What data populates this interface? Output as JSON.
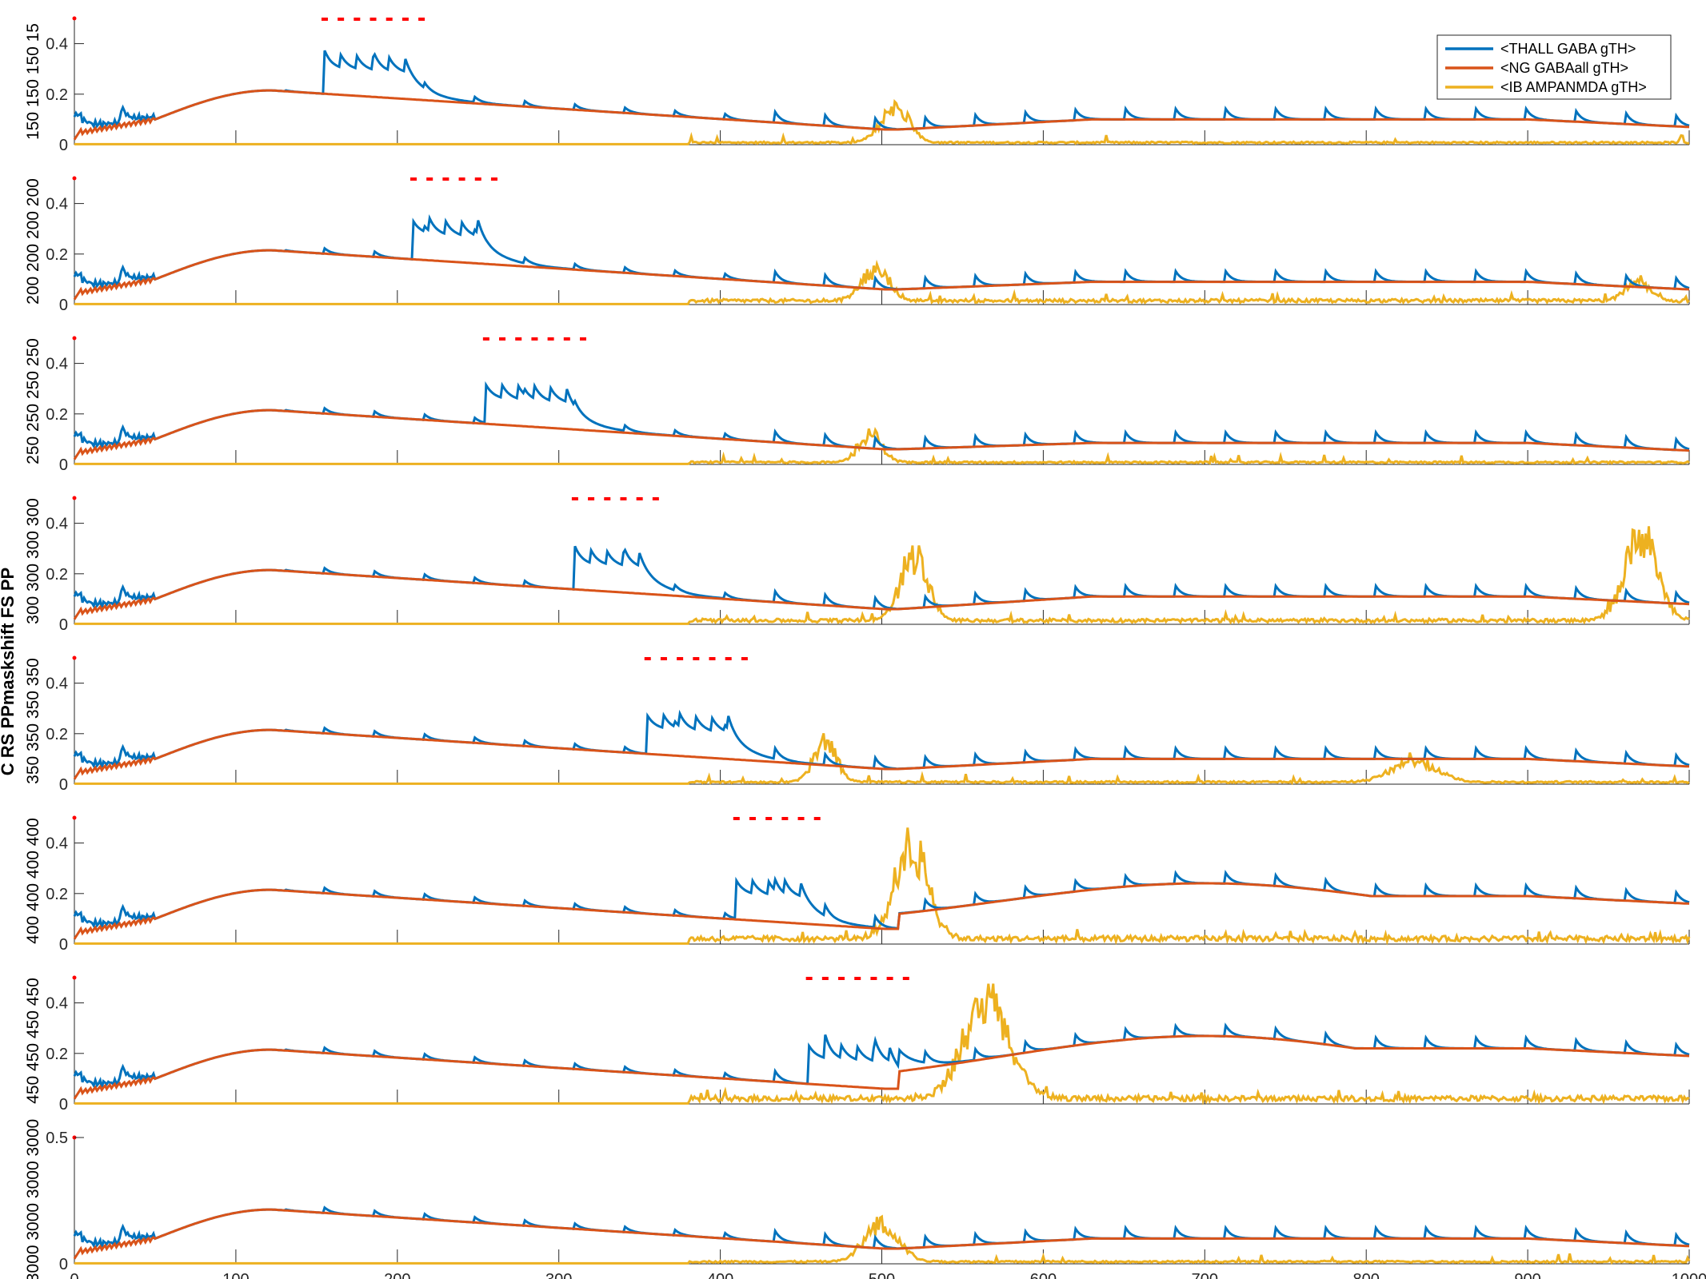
{
  "figure_label": "C RS PPmaskshift FS PP",
  "chart_data": {
    "type": "line",
    "shared_x": {
      "xlim": [
        0,
        1000
      ],
      "ticks": [
        0,
        100,
        200,
        300,
        400,
        500,
        600,
        700,
        800,
        900,
        1000
      ]
    },
    "colors": {
      "THALL": "#0072BD",
      "NG": "#D95319",
      "IB": "#EDB120",
      "pulse": "#FF0000"
    },
    "legend": {
      "position": "top-right",
      "entries": [
        "<THALL GABA gTH>",
        "<NG GABAall gTH>",
        "<IB AMPANMDA gTH>"
      ]
    },
    "panels": [
      {
        "ylabel": "150 150 150 15",
        "ylim": [
          0,
          0.5
        ],
        "yticks": [
          "0",
          "0.2",
          "0.4"
        ],
        "pulse_start": 155,
        "pulse_count": 6,
        "pulse_period": 10,
        "ib_bursts": [
          [
            508,
            0.18,
            12
          ]
        ],
        "ib_tail": 0.01,
        "ng_late": 0.1
      },
      {
        "ylabel": "200 200 200 200",
        "ylim": [
          0,
          0.5
        ],
        "yticks": [
          "0",
          "0.2",
          "0.4"
        ],
        "pulse_start": 210,
        "pulse_count": 5,
        "pulse_period": 10,
        "ib_bursts": [
          [
            496,
            0.16,
            12
          ],
          [
            968,
            0.1,
            10
          ]
        ],
        "ib_tail": 0.02,
        "ng_late": 0.09
      },
      {
        "ylabel": "250 250 250 250",
        "ylim": [
          0,
          0.5
        ],
        "yticks": [
          "0",
          "0.2",
          "0.4"
        ],
        "pulse_start": 255,
        "pulse_count": 6,
        "pulse_period": 10,
        "ib_bursts": [
          [
            493,
            0.14,
            10
          ]
        ],
        "ib_tail": 0.01,
        "ng_late": 0.085
      },
      {
        "ylabel": "300 300 300 300",
        "ylim": [
          0,
          0.5
        ],
        "yticks": [
          "0",
          "0.2",
          "0.4"
        ],
        "pulse_start": 310,
        "pulse_count": 5,
        "pulse_period": 10,
        "ib_bursts": [
          [
            520,
            0.33,
            12
          ],
          [
            970,
            0.42,
            14
          ]
        ],
        "ib_tail": 0.02,
        "ng_late": 0.11
      },
      {
        "ylabel": "350 350 350 350",
        "ylim": [
          0,
          0.5
        ],
        "yticks": [
          "0",
          "0.2",
          "0.4"
        ],
        "pulse_start": 355,
        "pulse_count": 6,
        "pulse_period": 10,
        "ib_bursts": [
          [
            465,
            0.2,
            10
          ],
          [
            830,
            0.1,
            20
          ]
        ],
        "ib_tail": 0.01,
        "ng_late": 0.1
      },
      {
        "ylabel": "400 400 400 400",
        "ylim": [
          0,
          0.5
        ],
        "yticks": [
          "0",
          "0.2",
          "0.4"
        ],
        "pulse_start": 410,
        "pulse_count": 5,
        "pulse_period": 10,
        "ib_bursts": [
          [
            518,
            0.48,
            14
          ]
        ],
        "ib_tail": 0.03,
        "ng_late": 0.19
      },
      {
        "ylabel": "450 450 450 450",
        "ylim": [
          0,
          0.5
        ],
        "yticks": [
          "0",
          "0.2",
          "0.4"
        ],
        "pulse_start": 455,
        "pulse_count": 6,
        "pulse_period": 10,
        "ib_bursts": [
          [
            565,
            0.48,
            20
          ]
        ],
        "ib_tail": 0.03,
        "ng_late": 0.22
      },
      {
        "ylabel": "3000 3000 3000 3000",
        "ylim": [
          0,
          0.5
        ],
        "yticks": [
          "0",
          "0.5"
        ],
        "pulse_start": null,
        "pulse_count": 0,
        "pulse_period": 10,
        "ib_bursts": [
          [
            500,
            0.2,
            14
          ]
        ],
        "ib_tail": 0.01,
        "ng_late": 0.1
      }
    ]
  }
}
